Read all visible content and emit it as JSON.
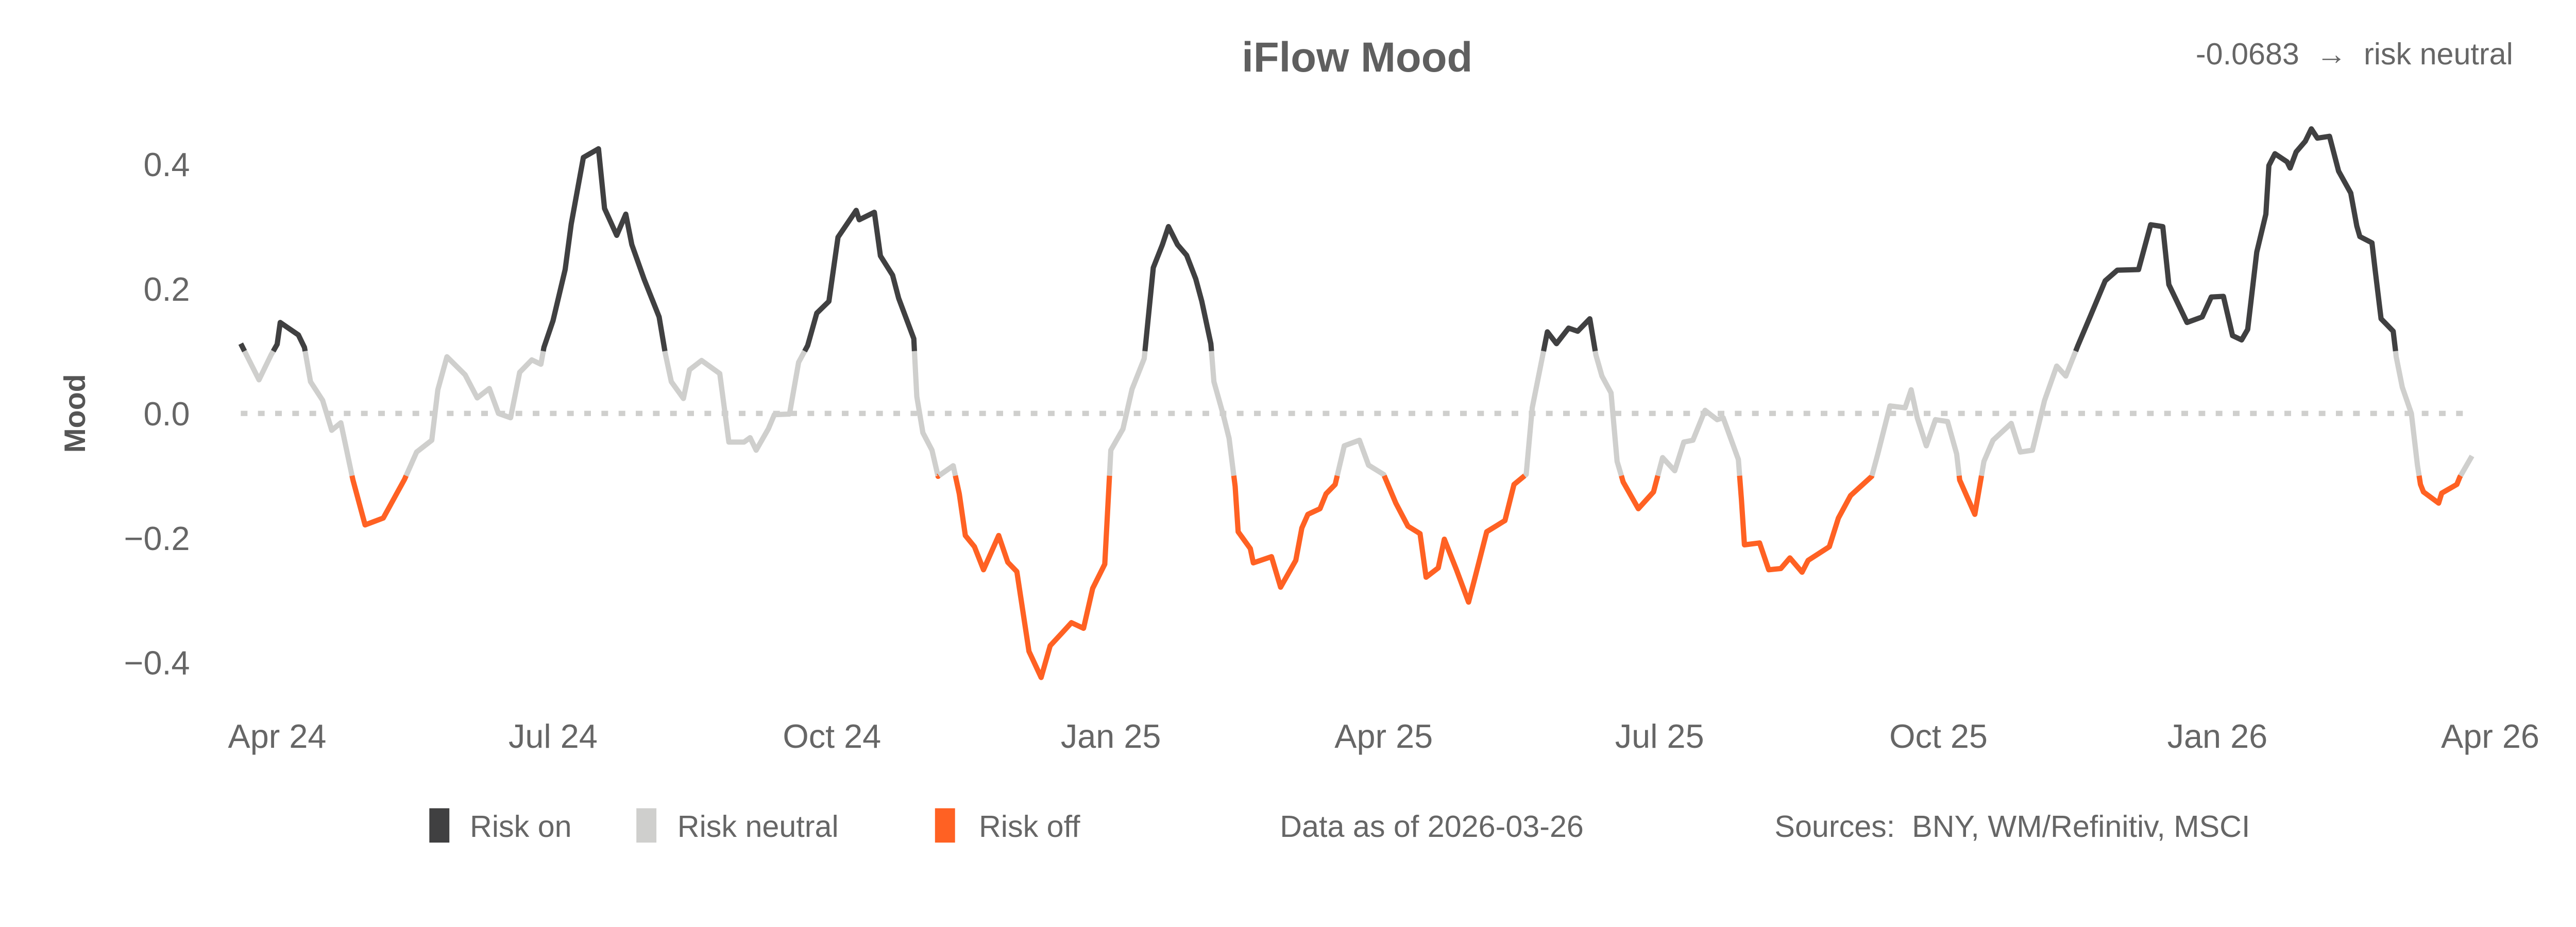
{
  "chart_data": {
    "type": "line",
    "title": "iFlow Mood",
    "annotation": "-0.0683  →  risk neutral",
    "ylabel": "Mood",
    "xlabel": "",
    "ylim": [
      -0.45,
      0.48
    ],
    "grid": false,
    "reference_line": {
      "value": 0.0,
      "style": "dotted"
    },
    "y_ticks": [
      {
        "value": 0.4,
        "label": "0.4"
      },
      {
        "value": 0.2,
        "label": "0.2"
      },
      {
        "value": 0.0,
        "label": "0.0"
      },
      {
        "value": -0.2,
        "label": "−0.2"
      },
      {
        "value": -0.4,
        "label": "−0.4"
      }
    ],
    "x_ticks": [
      {
        "date": "2024-04-01",
        "label": "Apr 24"
      },
      {
        "date": "2024-07-01",
        "label": "Jul 24"
      },
      {
        "date": "2024-10-01",
        "label": "Oct 24"
      },
      {
        "date": "2025-01-01",
        "label": "Jan 25"
      },
      {
        "date": "2025-04-01",
        "label": "Apr 25"
      },
      {
        "date": "2025-07-01",
        "label": "Jul 25"
      },
      {
        "date": "2025-10-01",
        "label": "Oct 25"
      },
      {
        "date": "2026-01-01",
        "label": "Jan 26"
      },
      {
        "date": "2026-04-01",
        "label": "Apr 26"
      }
    ],
    "legend": {
      "placement": "bottom",
      "items": [
        {
          "key": "on",
          "label": "Risk on",
          "color": "#404041"
        },
        {
          "key": "neutral",
          "label": "Risk neutral",
          "color": "#cfcfcd"
        },
        {
          "key": "off",
          "label": "Risk off",
          "color": "#ff6123"
        }
      ]
    },
    "data_as_of": "Data as of 2026-03-26",
    "sources": "Sources:  BNY, WM/Refinitiv, MSCI",
    "series": [
      {
        "points": [
          [
            "2024-03-20",
            0.112
          ],
          [
            "2024-03-26",
            0.054
          ],
          [
            "2024-03-30",
            0.094
          ],
          [
            "2024-04-01",
            0.111
          ],
          [
            "2024-04-02",
            0.146
          ],
          [
            "2024-04-08",
            0.126
          ],
          [
            "2024-04-10",
            0.106
          ],
          [
            "2024-04-12",
            0.051
          ],
          [
            "2024-04-16",
            0.021
          ],
          [
            "2024-04-19",
            -0.027
          ],
          [
            "2024-04-22",
            -0.015
          ],
          [
            "2024-04-26",
            -0.107
          ],
          [
            "2024-04-30",
            -0.179
          ],
          [
            "2024-05-06",
            -0.168
          ],
          [
            "2024-05-13",
            -0.106
          ],
          [
            "2024-05-17",
            -0.062
          ],
          [
            "2024-05-22",
            -0.043
          ],
          [
            "2024-05-24",
            0.038
          ],
          [
            "2024-05-27",
            0.091
          ],
          [
            "2024-06-02",
            0.062
          ],
          [
            "2024-06-06",
            0.025
          ],
          [
            "2024-06-10",
            0.04
          ],
          [
            "2024-06-13",
            0.0
          ],
          [
            "2024-06-17",
            -0.007
          ],
          [
            "2024-06-20",
            0.066
          ],
          [
            "2024-06-24",
            0.086
          ],
          [
            "2024-06-27",
            0.079
          ],
          [
            "2024-06-28",
            0.106
          ],
          [
            "2024-07-01",
            0.149
          ],
          [
            "2024-07-05",
            0.231
          ],
          [
            "2024-07-07",
            0.304
          ],
          [
            "2024-07-11",
            0.411
          ],
          [
            "2024-07-16",
            0.425
          ],
          [
            "2024-07-18",
            0.329
          ],
          [
            "2024-07-22",
            0.286
          ],
          [
            "2024-07-25",
            0.32
          ],
          [
            "2024-07-27",
            0.271
          ],
          [
            "2024-07-31",
            0.216
          ],
          [
            "2024-08-05",
            0.155
          ],
          [
            "2024-08-07",
            0.097
          ],
          [
            "2024-08-09",
            0.051
          ],
          [
            "2024-08-13",
            0.024
          ],
          [
            "2024-08-15",
            0.07
          ],
          [
            "2024-08-19",
            0.085
          ],
          [
            "2024-08-25",
            0.064
          ],
          [
            "2024-08-28",
            -0.046
          ],
          [
            "2024-09-02",
            -0.046
          ],
          [
            "2024-09-04",
            -0.039
          ],
          [
            "2024-09-06",
            -0.059
          ],
          [
            "2024-09-10",
            -0.025
          ],
          [
            "2024-09-12",
            -0.002
          ],
          [
            "2024-09-17",
            -0.001
          ],
          [
            "2024-09-20",
            0.082
          ],
          [
            "2024-09-23",
            0.109
          ],
          [
            "2024-09-26",
            0.161
          ],
          [
            "2024-09-30",
            0.18
          ],
          [
            "2024-10-03",
            0.283
          ],
          [
            "2024-10-09",
            0.326
          ],
          [
            "2024-10-10",
            0.311
          ],
          [
            "2024-10-15",
            0.323
          ],
          [
            "2024-10-17",
            0.253
          ],
          [
            "2024-10-21",
            0.222
          ],
          [
            "2024-10-23",
            0.185
          ],
          [
            "2024-10-28",
            0.12
          ],
          [
            "2024-10-29",
            0.027
          ],
          [
            "2024-10-31",
            -0.031
          ],
          [
            "2024-11-03",
            -0.059
          ],
          [
            "2024-11-05",
            -0.101
          ],
          [
            "2024-11-10",
            -0.084
          ],
          [
            "2024-11-12",
            -0.129
          ],
          [
            "2024-11-14",
            -0.196
          ],
          [
            "2024-11-17",
            -0.214
          ],
          [
            "2024-11-20",
            -0.251
          ],
          [
            "2024-11-25",
            -0.196
          ],
          [
            "2024-11-28",
            -0.239
          ],
          [
            "2024-12-01",
            -0.254
          ],
          [
            "2024-12-05",
            -0.382
          ],
          [
            "2024-12-09",
            -0.424
          ],
          [
            "2024-12-12",
            -0.373
          ],
          [
            "2024-12-16",
            -0.352
          ],
          [
            "2024-12-19",
            -0.336
          ],
          [
            "2024-12-23",
            -0.345
          ],
          [
            "2024-12-26",
            -0.281
          ],
          [
            "2024-12-30",
            -0.242
          ],
          [
            "2025-01-01",
            -0.059
          ],
          [
            "2025-01-05",
            -0.025
          ],
          [
            "2025-01-08",
            0.039
          ],
          [
            "2025-01-12",
            0.088
          ],
          [
            "2025-01-15",
            0.234
          ],
          [
            "2025-01-18",
            0.271
          ],
          [
            "2025-01-20",
            0.3
          ],
          [
            "2025-01-23",
            0.271
          ],
          [
            "2025-01-26",
            0.254
          ],
          [
            "2025-01-29",
            0.216
          ],
          [
            "2025-01-31",
            0.18
          ],
          [
            "2025-02-03",
            0.112
          ],
          [
            "2025-02-04",
            0.051
          ],
          [
            "2025-02-07",
            -0.001
          ],
          [
            "2025-02-09",
            -0.04
          ],
          [
            "2025-02-11",
            -0.117
          ],
          [
            "2025-02-12",
            -0.19
          ],
          [
            "2025-02-16",
            -0.217
          ],
          [
            "2025-02-17",
            -0.24
          ],
          [
            "2025-02-23",
            -0.23
          ],
          [
            "2025-02-26",
            -0.279
          ],
          [
            "2025-03-03",
            -0.236
          ],
          [
            "2025-03-05",
            -0.184
          ],
          [
            "2025-03-07",
            -0.162
          ],
          [
            "2025-03-11",
            -0.153
          ],
          [
            "2025-03-13",
            -0.129
          ],
          [
            "2025-03-16",
            -0.114
          ],
          [
            "2025-03-19",
            -0.052
          ],
          [
            "2025-03-24",
            -0.043
          ],
          [
            "2025-03-27",
            -0.083
          ],
          [
            "2025-04-01",
            -0.098
          ],
          [
            "2025-04-05",
            -0.144
          ],
          [
            "2025-04-09",
            -0.181
          ],
          [
            "2025-04-13",
            -0.193
          ],
          [
            "2025-04-15",
            -0.263
          ],
          [
            "2025-04-19",
            -0.248
          ],
          [
            "2025-04-21",
            -0.202
          ],
          [
            "2025-04-25",
            -0.251
          ],
          [
            "2025-04-29",
            -0.303
          ],
          [
            "2025-05-01",
            -0.266
          ],
          [
            "2025-05-05",
            -0.19
          ],
          [
            "2025-05-07",
            -0.184
          ],
          [
            "2025-05-11",
            -0.172
          ],
          [
            "2025-05-14",
            -0.114
          ],
          [
            "2025-05-18",
            -0.098
          ],
          [
            "2025-05-20",
            0.009
          ],
          [
            "2025-05-25",
            0.131
          ],
          [
            "2025-05-28",
            0.112
          ],
          [
            "2025-06-01",
            0.137
          ],
          [
            "2025-06-04",
            0.132
          ],
          [
            "2025-06-08",
            0.152
          ],
          [
            "2025-06-10",
            0.094
          ],
          [
            "2025-06-12",
            0.06
          ],
          [
            "2025-06-15",
            0.033
          ],
          [
            "2025-06-17",
            -0.077
          ],
          [
            "2025-06-19",
            -0.11
          ],
          [
            "2025-06-24",
            -0.153
          ],
          [
            "2025-06-29",
            -0.126
          ],
          [
            "2025-07-02",
            -0.071
          ],
          [
            "2025-07-06",
            -0.092
          ],
          [
            "2025-07-09",
            -0.046
          ],
          [
            "2025-07-12",
            -0.043
          ],
          [
            "2025-07-16",
            0.005
          ],
          [
            "2025-07-20",
            -0.01
          ],
          [
            "2025-07-22",
            -0.007
          ],
          [
            "2025-07-27",
            -0.074
          ],
          [
            "2025-07-28",
            -0.138
          ],
          [
            "2025-07-29",
            -0.211
          ],
          [
            "2025-08-03",
            -0.208
          ],
          [
            "2025-08-06",
            -0.251
          ],
          [
            "2025-08-10",
            -0.249
          ],
          [
            "2025-08-13",
            -0.232
          ],
          [
            "2025-08-17",
            -0.255
          ],
          [
            "2025-08-19",
            -0.236
          ],
          [
            "2025-08-26",
            -0.214
          ],
          [
            "2025-08-29",
            -0.168
          ],
          [
            "2025-09-02",
            -0.132
          ],
          [
            "2025-09-09",
            -0.101
          ],
          [
            "2025-09-11",
            -0.065
          ],
          [
            "2025-09-15",
            0.012
          ],
          [
            "2025-09-20",
            0.009
          ],
          [
            "2025-09-22",
            0.038
          ],
          [
            "2025-09-24",
            -0.007
          ],
          [
            "2025-09-27",
            -0.052
          ],
          [
            "2025-09-30",
            -0.01
          ],
          [
            "2025-10-04",
            -0.013
          ],
          [
            "2025-10-07",
            -0.065
          ],
          [
            "2025-10-08",
            -0.107
          ],
          [
            "2025-10-13",
            -0.162
          ],
          [
            "2025-10-16",
            -0.077
          ],
          [
            "2025-10-19",
            -0.043
          ],
          [
            "2025-10-25",
            -0.016
          ],
          [
            "2025-10-28",
            -0.062
          ],
          [
            "2025-11-01",
            -0.059
          ],
          [
            "2025-11-05",
            0.021
          ],
          [
            "2025-11-09",
            0.076
          ],
          [
            "2025-11-12",
            0.06
          ],
          [
            "2025-11-16",
            0.109
          ],
          [
            "2025-11-20",
            0.155
          ],
          [
            "2025-11-25",
            0.213
          ],
          [
            "2025-11-29",
            0.23
          ],
          [
            "2025-12-06",
            0.231
          ],
          [
            "2025-12-10",
            0.303
          ],
          [
            "2025-12-14",
            0.3
          ],
          [
            "2025-12-16",
            0.207
          ],
          [
            "2025-12-22",
            0.146
          ],
          [
            "2025-12-27",
            0.155
          ],
          [
            "2025-12-30",
            0.187
          ],
          [
            "2026-01-03",
            0.188
          ],
          [
            "2026-01-06",
            0.125
          ],
          [
            "2026-01-09",
            0.118
          ],
          [
            "2026-01-11",
            0.135
          ],
          [
            "2026-01-14",
            0.259
          ],
          [
            "2026-01-17",
            0.32
          ],
          [
            "2026-01-18",
            0.398
          ],
          [
            "2026-01-20",
            0.417
          ],
          [
            "2026-01-24",
            0.404
          ],
          [
            "2026-01-25",
            0.394
          ],
          [
            "2026-01-27",
            0.42
          ],
          [
            "2026-01-30",
            0.437
          ],
          [
            "2026-02-01",
            0.457
          ],
          [
            "2026-02-03",
            0.442
          ],
          [
            "2026-02-07",
            0.445
          ],
          [
            "2026-02-10",
            0.389
          ],
          [
            "2026-02-14",
            0.354
          ],
          [
            "2026-02-16",
            0.301
          ],
          [
            "2026-02-17",
            0.284
          ],
          [
            "2026-02-21",
            0.274
          ],
          [
            "2026-02-22",
            0.232
          ],
          [
            "2026-02-24",
            0.152
          ],
          [
            "2026-02-28",
            0.132
          ],
          [
            "2026-03-01",
            0.091
          ],
          [
            "2026-03-03",
            0.042
          ],
          [
            "2026-03-06",
            0.0
          ],
          [
            "2026-03-08",
            -0.083
          ],
          [
            "2026-03-09",
            -0.114
          ],
          [
            "2026-03-10",
            -0.126
          ],
          [
            "2026-03-15",
            -0.144
          ],
          [
            "2026-03-16",
            -0.128
          ],
          [
            "2026-03-21",
            -0.114
          ],
          [
            "2026-03-22",
            -0.102
          ],
          [
            "2026-03-26",
            -0.0683
          ]
        ]
      }
    ]
  }
}
